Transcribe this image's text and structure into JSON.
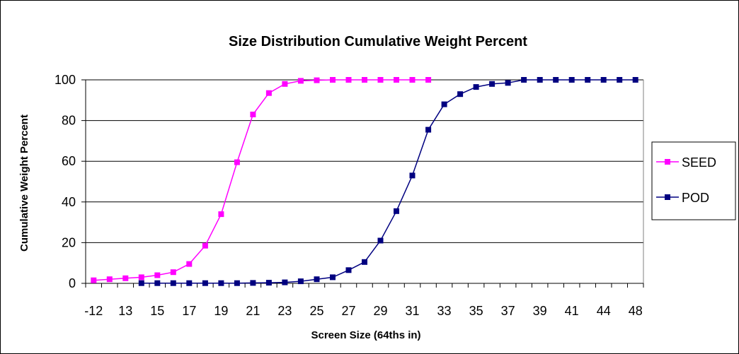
{
  "chart_data": {
    "type": "line",
    "title": "Size Distribution Cumulative Weight Percent",
    "xlabel": "Screen Size (64ths in)",
    "ylabel": "Cumulative Weight Percent",
    "ylim": [
      0,
      100
    ],
    "yticks": [
      "0",
      "20",
      "40",
      "60",
      "80",
      "100"
    ],
    "categories": [
      "-12",
      "12",
      "13",
      "14",
      "15",
      "16",
      "17",
      "18",
      "19",
      "20",
      "21",
      "22",
      "23",
      "24",
      "25",
      "26",
      "27",
      "28",
      "29",
      "30",
      "31",
      "32",
      "33",
      "34",
      "35",
      "36",
      "37",
      "38",
      "39",
      "40",
      "41",
      "42",
      "44",
      "46",
      "48"
    ],
    "x_tick_labels": [
      "-12",
      "13",
      "15",
      "17",
      "19",
      "21",
      "23",
      "25",
      "27",
      "29",
      "31",
      "33",
      "35",
      "37",
      "39",
      "41",
      "44",
      "48"
    ],
    "grid": "horizontal",
    "legend_position": "right",
    "series": [
      {
        "name": "SEED",
        "color": "#ff00ff",
        "marker": "square",
        "values": [
          1.5,
          2.0,
          2.5,
          3.0,
          4.0,
          5.5,
          9.5,
          18.5,
          34.0,
          59.5,
          83.0,
          93.5,
          98.0,
          99.5,
          99.8,
          100,
          100,
          100,
          100,
          100,
          100,
          100,
          null,
          null,
          null,
          null,
          null,
          null,
          null,
          null,
          null,
          null,
          null,
          null,
          null
        ]
      },
      {
        "name": "POD",
        "color": "#000080",
        "marker": "square",
        "values": [
          null,
          null,
          null,
          0.1,
          0.1,
          0.1,
          0.1,
          0.1,
          0.1,
          0.1,
          0.2,
          0.3,
          0.5,
          1.0,
          2.0,
          3.0,
          6.5,
          10.5,
          21.0,
          35.5,
          53.0,
          75.5,
          88.0,
          93.0,
          96.5,
          98.0,
          98.5,
          100,
          100,
          100,
          100,
          100,
          100,
          100,
          100
        ]
      }
    ]
  }
}
